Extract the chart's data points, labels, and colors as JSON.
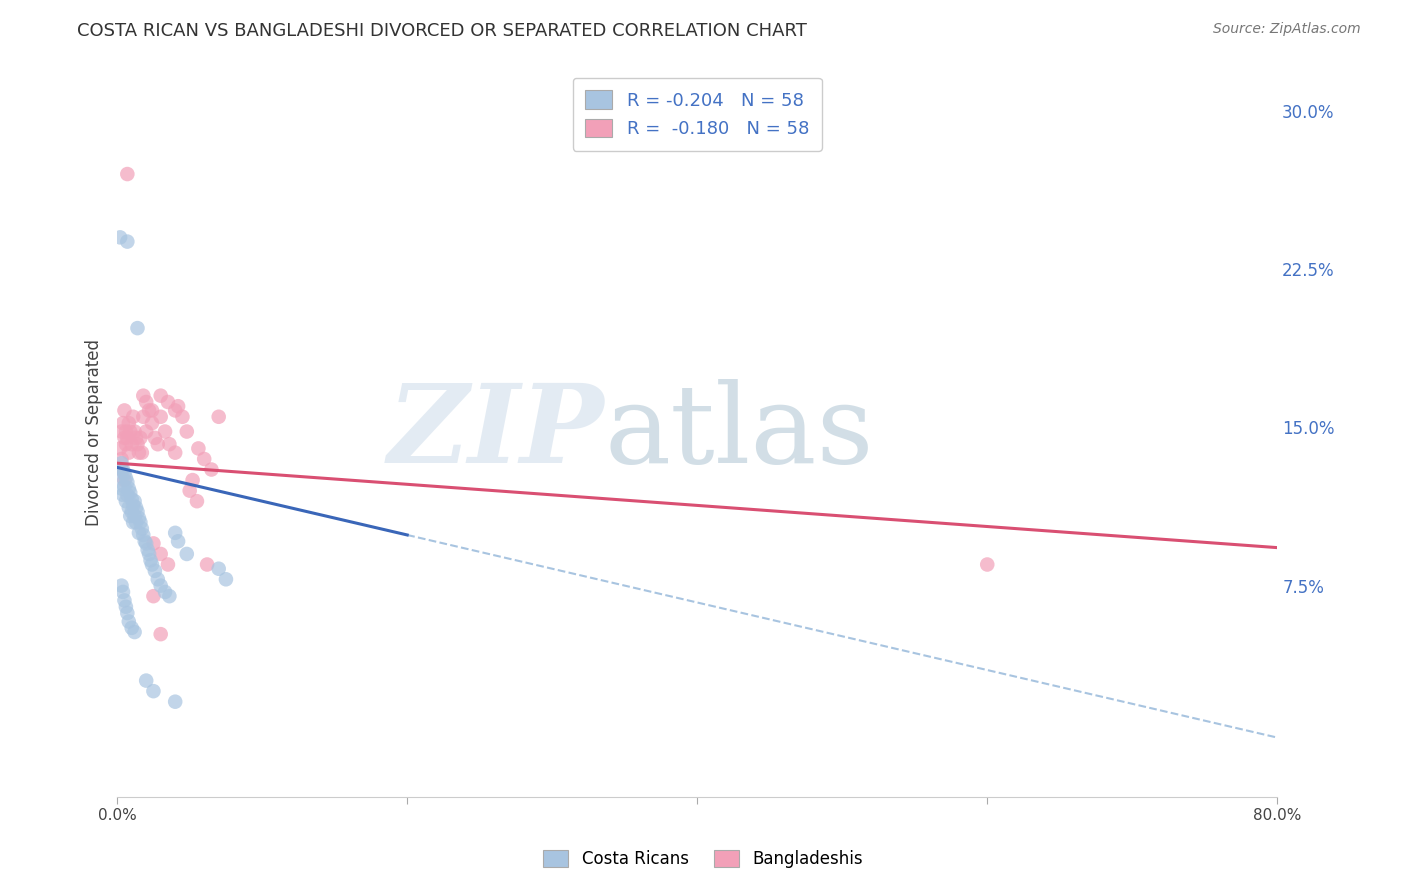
{
  "title": "COSTA RICAN VS BANGLADESHI DIVORCED OR SEPARATED CORRELATION CHART",
  "source": "Source: ZipAtlas.com",
  "ylabel": "Divorced or Separated",
  "xlim": [
    0.0,
    0.8
  ],
  "ylim": [
    -0.025,
    0.32
  ],
  "yticks_right": [
    0.075,
    0.15,
    0.225,
    0.3
  ],
  "ytick_right_labels": [
    "7.5%",
    "15.0%",
    "22.5%",
    "30.0%"
  ],
  "legend_text_color": "#4472c4",
  "costa_rican_color": "#a8c4e0",
  "bangladeshi_color": "#f2a0b8",
  "trend_blue_solid_color": "#3a66b8",
  "trend_pink_solid_color": "#d94f72",
  "trend_blue_dash_color": "#a8c4e0",
  "background_color": "#ffffff",
  "grid_color": "#cccccc",
  "costa_ricans_scatter": [
    [
      0.002,
      0.127
    ],
    [
      0.003,
      0.133
    ],
    [
      0.003,
      0.121
    ],
    [
      0.004,
      0.13
    ],
    [
      0.004,
      0.118
    ],
    [
      0.005,
      0.128
    ],
    [
      0.005,
      0.122
    ],
    [
      0.006,
      0.126
    ],
    [
      0.006,
      0.115
    ],
    [
      0.007,
      0.124
    ],
    [
      0.007,
      0.118
    ],
    [
      0.008,
      0.121
    ],
    [
      0.008,
      0.112
    ],
    [
      0.009,
      0.119
    ],
    [
      0.009,
      0.108
    ],
    [
      0.01,
      0.116
    ],
    [
      0.01,
      0.11
    ],
    [
      0.011,
      0.113
    ],
    [
      0.011,
      0.105
    ],
    [
      0.012,
      0.115
    ],
    [
      0.012,
      0.108
    ],
    [
      0.013,
      0.112
    ],
    [
      0.013,
      0.105
    ],
    [
      0.014,
      0.11
    ],
    [
      0.015,
      0.107
    ],
    [
      0.015,
      0.1
    ],
    [
      0.016,
      0.105
    ],
    [
      0.017,
      0.102
    ],
    [
      0.018,
      0.099
    ],
    [
      0.019,
      0.096
    ],
    [
      0.02,
      0.095
    ],
    [
      0.021,
      0.092
    ],
    [
      0.022,
      0.09
    ],
    [
      0.023,
      0.087
    ],
    [
      0.024,
      0.085
    ],
    [
      0.026,
      0.082
    ],
    [
      0.028,
      0.078
    ],
    [
      0.03,
      0.075
    ],
    [
      0.033,
      0.072
    ],
    [
      0.036,
      0.07
    ],
    [
      0.04,
      0.1
    ],
    [
      0.042,
      0.096
    ],
    [
      0.048,
      0.09
    ],
    [
      0.002,
      0.24
    ],
    [
      0.007,
      0.238
    ],
    [
      0.014,
      0.197
    ],
    [
      0.003,
      0.075
    ],
    [
      0.004,
      0.072
    ],
    [
      0.005,
      0.068
    ],
    [
      0.006,
      0.065
    ],
    [
      0.007,
      0.062
    ],
    [
      0.008,
      0.058
    ],
    [
      0.01,
      0.055
    ],
    [
      0.012,
      0.053
    ],
    [
      0.02,
      0.03
    ],
    [
      0.025,
      0.025
    ],
    [
      0.04,
      0.02
    ],
    [
      0.07,
      0.083
    ],
    [
      0.075,
      0.078
    ]
  ],
  "bangladeshis_scatter": [
    [
      0.002,
      0.14
    ],
    [
      0.003,
      0.148
    ],
    [
      0.003,
      0.135
    ],
    [
      0.004,
      0.152
    ],
    [
      0.005,
      0.145
    ],
    [
      0.005,
      0.158
    ],
    [
      0.006,
      0.148
    ],
    [
      0.006,
      0.142
    ],
    [
      0.007,
      0.145
    ],
    [
      0.008,
      0.152
    ],
    [
      0.008,
      0.138
    ],
    [
      0.009,
      0.148
    ],
    [
      0.01,
      0.142
    ],
    [
      0.011,
      0.155
    ],
    [
      0.012,
      0.148
    ],
    [
      0.013,
      0.145
    ],
    [
      0.014,
      0.142
    ],
    [
      0.015,
      0.138
    ],
    [
      0.016,
      0.145
    ],
    [
      0.017,
      0.138
    ],
    [
      0.018,
      0.155
    ],
    [
      0.02,
      0.148
    ],
    [
      0.022,
      0.158
    ],
    [
      0.024,
      0.152
    ],
    [
      0.026,
      0.145
    ],
    [
      0.028,
      0.142
    ],
    [
      0.03,
      0.155
    ],
    [
      0.033,
      0.148
    ],
    [
      0.036,
      0.142
    ],
    [
      0.04,
      0.138
    ],
    [
      0.042,
      0.16
    ],
    [
      0.045,
      0.155
    ],
    [
      0.048,
      0.148
    ],
    [
      0.052,
      0.125
    ],
    [
      0.056,
      0.14
    ],
    [
      0.06,
      0.135
    ],
    [
      0.065,
      0.13
    ],
    [
      0.07,
      0.155
    ],
    [
      0.007,
      0.27
    ],
    [
      0.018,
      0.165
    ],
    [
      0.02,
      0.162
    ],
    [
      0.024,
      0.158
    ],
    [
      0.03,
      0.165
    ],
    [
      0.035,
      0.162
    ],
    [
      0.04,
      0.158
    ],
    [
      0.025,
      0.095
    ],
    [
      0.03,
      0.09
    ],
    [
      0.035,
      0.085
    ],
    [
      0.062,
      0.085
    ],
    [
      0.05,
      0.12
    ],
    [
      0.055,
      0.115
    ],
    [
      0.025,
      0.07
    ],
    [
      0.03,
      0.052
    ],
    [
      0.6,
      0.085
    ],
    [
      0.003,
      0.13
    ],
    [
      0.005,
      0.125
    ]
  ],
  "trend_blue_x1": 0.0,
  "trend_blue_y1": 0.131,
  "trend_blue_x2": 0.2,
  "trend_blue_y2": 0.099,
  "trend_blue_ext_x1": 0.2,
  "trend_blue_ext_y1": 0.099,
  "trend_blue_ext_x2": 0.8,
  "trend_blue_ext_y2": 0.003,
  "trend_pink_x1": 0.0,
  "trend_pink_y1": 0.133,
  "trend_pink_x2": 0.8,
  "trend_pink_y2": 0.093
}
